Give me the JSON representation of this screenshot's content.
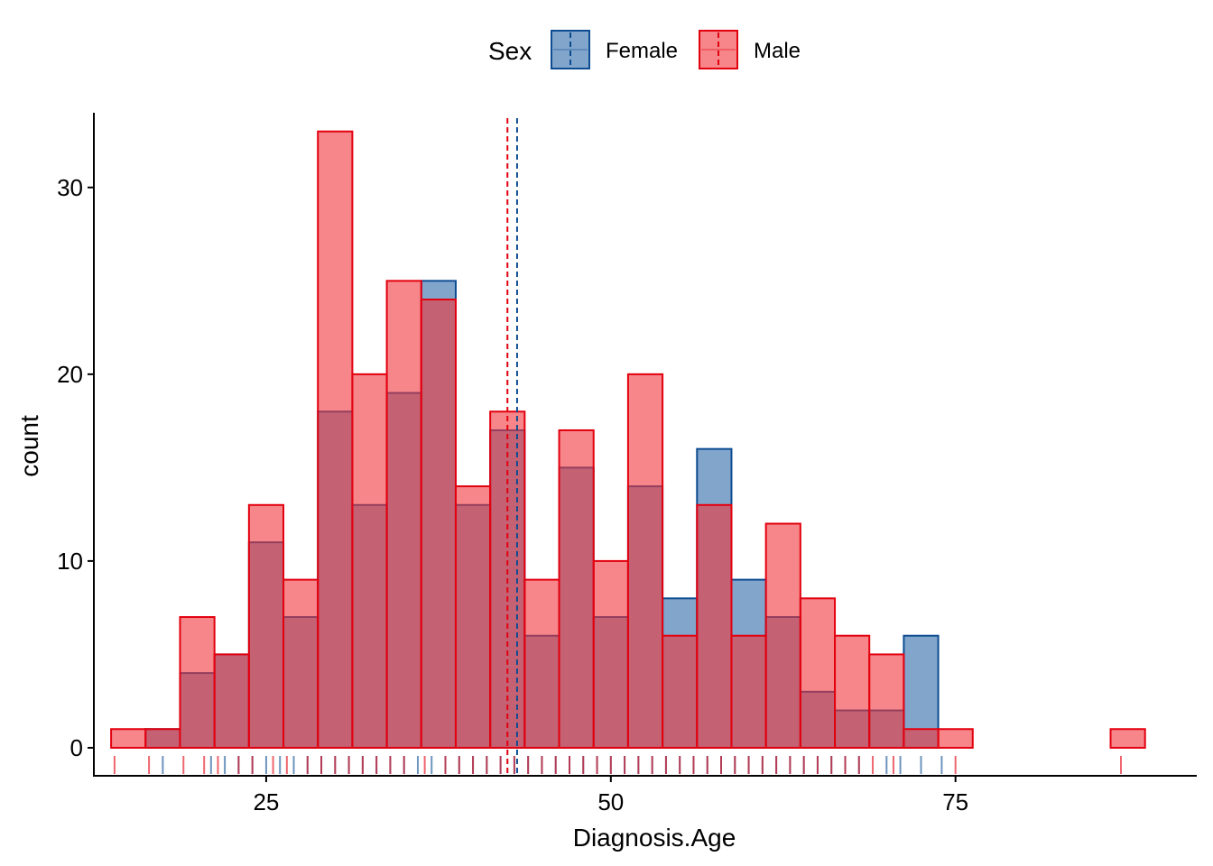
{
  "chart_data": {
    "type": "histogram",
    "xlabel": "Diagnosis.Age",
    "ylabel": "count",
    "xlim": [
      12.5,
      92.5
    ],
    "ylim": [
      -1.5,
      34
    ],
    "xticks": [
      25,
      50,
      75
    ],
    "yticks": [
      0,
      10,
      20,
      30
    ],
    "bin_width": 2.5,
    "bin_centers": [
      15,
      17.5,
      20,
      22.5,
      25,
      27.5,
      30,
      32.5,
      35,
      37.5,
      40,
      42.5,
      45,
      47.5,
      50,
      52.5,
      55,
      57.5,
      60,
      62.5,
      65,
      67.5,
      70,
      72.5,
      75,
      77.5,
      80,
      82.5,
      85,
      87.5
    ],
    "legend": {
      "title": "Sex",
      "position": "top"
    },
    "series": [
      {
        "name": "Female",
        "fill": "#2E6AA8",
        "stroke": "#0E4C92",
        "counts": [
          0,
          1,
          4,
          5,
          11,
          7,
          18,
          13,
          19,
          25,
          13,
          17,
          6,
          15,
          7,
          14,
          8,
          16,
          9,
          7,
          3,
          2,
          2,
          6,
          0,
          0,
          0,
          0,
          0,
          0
        ],
        "mean": 43.2,
        "rug": [
          17.5,
          21,
          22,
          23,
          24,
          25,
          26,
          27,
          28,
          29,
          30,
          31,
          32,
          33,
          34,
          35,
          36,
          37,
          38,
          39,
          40,
          41,
          42,
          43,
          44,
          45,
          46,
          47,
          48,
          49,
          50,
          51,
          52,
          53,
          54,
          55,
          56,
          57,
          58,
          59,
          60,
          61,
          62,
          63,
          64,
          65,
          66,
          67,
          68,
          70,
          71,
          72.5,
          74
        ]
      },
      {
        "name": "Male",
        "fill": "#F0353A",
        "stroke": "#E3000F",
        "counts": [
          1,
          1,
          7,
          5,
          13,
          9,
          33,
          20,
          25,
          24,
          14,
          18,
          9,
          17,
          10,
          20,
          6,
          13,
          6,
          12,
          8,
          6,
          5,
          1,
          1,
          0,
          0,
          0,
          0,
          1
        ],
        "mean": 42.5,
        "rug": [
          14,
          16.5,
          19,
          20.5,
          21.5,
          23,
          24,
          25.5,
          26.5,
          28,
          29,
          30,
          31,
          32,
          33,
          34,
          35,
          36.5,
          38,
          39,
          40,
          41,
          42,
          43,
          44,
          45,
          46,
          47,
          48,
          49,
          50,
          51,
          52,
          53,
          54,
          55,
          56,
          57,
          58,
          59,
          60,
          61,
          62,
          63,
          64,
          65,
          66,
          67,
          68,
          69,
          70.5,
          75,
          87
        ]
      }
    ],
    "grid": false
  }
}
